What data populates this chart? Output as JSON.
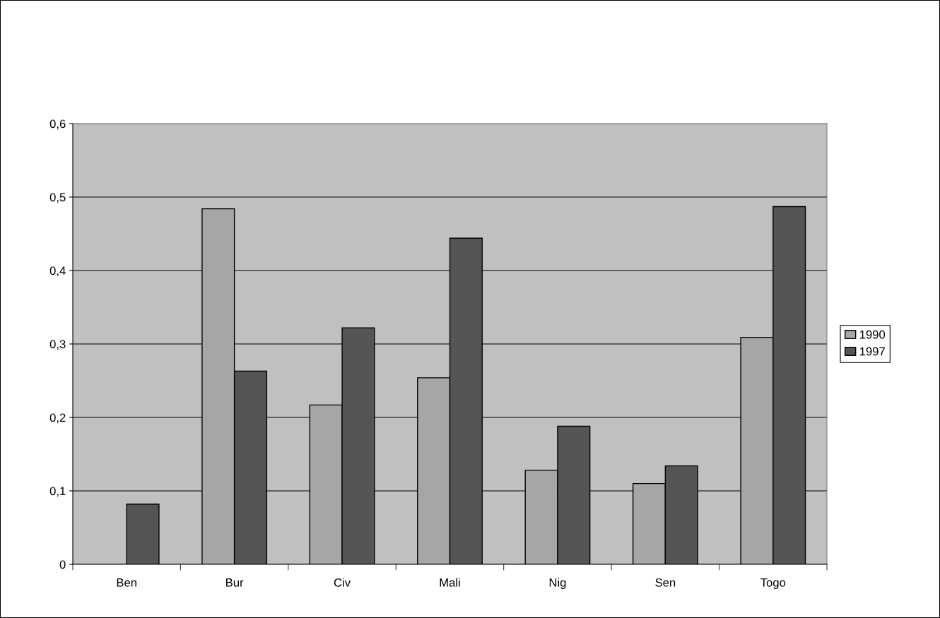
{
  "chart_data": {
    "type": "bar",
    "categories": [
      "Ben",
      "Bur",
      "Civ",
      "Mali",
      "Nig",
      "Sen",
      "Togo"
    ],
    "series": [
      {
        "name": "1990",
        "color": "#a6a6a6",
        "values": [
          null,
          0.484,
          0.217,
          0.254,
          0.128,
          0.11,
          0.309
        ]
      },
      {
        "name": "1997",
        "color": "#555555",
        "values": [
          0.082,
          0.263,
          0.322,
          0.444,
          0.188,
          0.134,
          0.487
        ]
      }
    ],
    "ylim": [
      0,
      0.6
    ],
    "yticks": [
      0,
      {
        "value": 0.1,
        "label": "0,1"
      },
      {
        "value": 0.2,
        "label": "0,2"
      },
      {
        "value": 0.3,
        "label": "0,3"
      },
      {
        "value": 0.4,
        "label": "0,4"
      },
      {
        "value": 0.5,
        "label": "0,5"
      },
      {
        "value": 0.6,
        "label": "0,6"
      }
    ],
    "grid": "y",
    "legend": "right"
  }
}
